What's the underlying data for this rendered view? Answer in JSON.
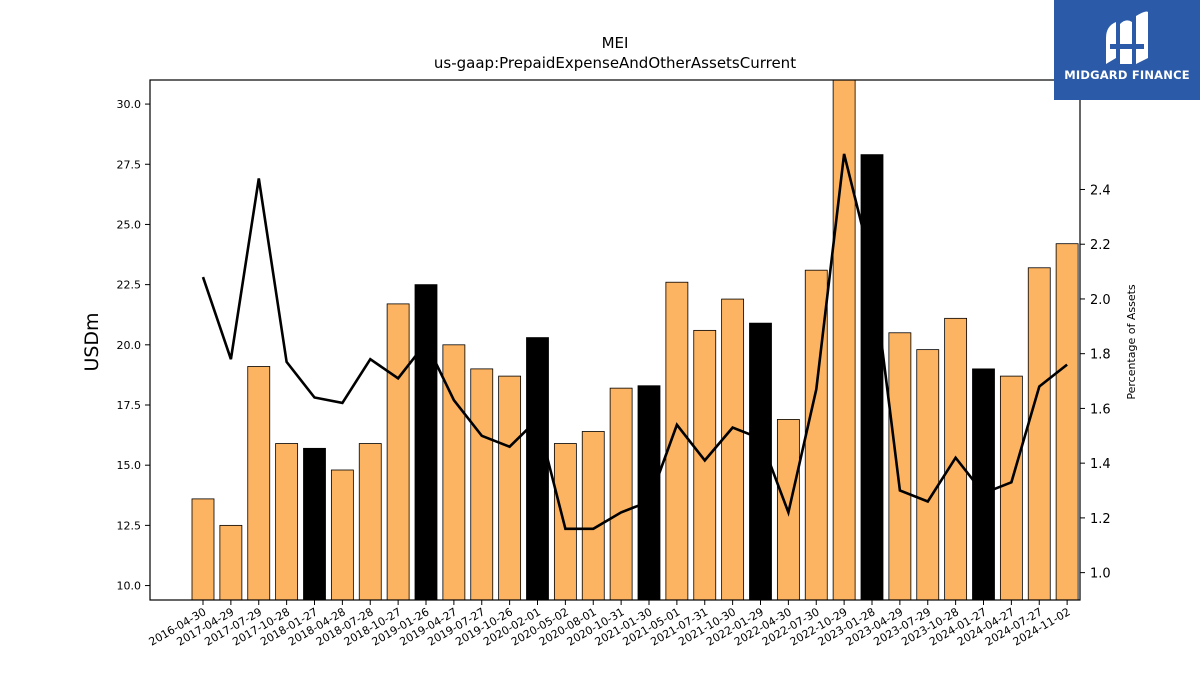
{
  "chart_data": {
    "type": "bar",
    "title": "MEI",
    "subtitle": "us-gaap:PrepaidExpenseAndOtherAssetsCurrent",
    "ylabel": "USDm",
    "y2label": "Percentage of Assets",
    "ylim": [
      9.4,
      31.0
    ],
    "y2lim": [
      0.9,
      2.8
    ],
    "yticks": [
      "10.0",
      "12.5",
      "15.0",
      "17.5",
      "20.0",
      "22.5",
      "25.0",
      "27.5",
      "30.0"
    ],
    "y2ticks": [
      "1.0",
      "1.2",
      "1.4",
      "1.6",
      "1.8",
      "2.0",
      "2.2",
      "2.4"
    ],
    "categories": [
      "2016-04-30",
      "2017-04-29",
      "2017-07-29",
      "2017-10-28",
      "2018-01-27",
      "2018-04-28",
      "2018-07-28",
      "2018-10-27",
      "2019-01-26",
      "2019-04-27",
      "2019-07-27",
      "2019-10-26",
      "2020-02-01",
      "2020-05-02",
      "2020-08-01",
      "2020-10-31",
      "2021-01-30",
      "2021-05-01",
      "2021-07-31",
      "2021-10-30",
      "2022-01-29",
      "2022-04-30",
      "2022-07-30",
      "2022-10-29",
      "2023-01-28",
      "2023-04-29",
      "2023-07-29",
      "2023-10-28",
      "2024-01-27",
      "2024-04-27",
      "2024-07-27",
      "2024-11-02"
    ],
    "values": [
      13.6,
      12.5,
      19.1,
      15.9,
      15.7,
      14.8,
      15.9,
      21.7,
      22.5,
      20.0,
      19.0,
      18.7,
      20.3,
      15.9,
      16.4,
      18.2,
      18.3,
      22.6,
      20.6,
      21.9,
      20.9,
      16.9,
      23.1,
      31.0,
      27.9,
      20.5,
      19.8,
      21.1,
      19.0,
      18.7,
      23.2,
      24.2
    ],
    "highlight": [
      false,
      false,
      false,
      false,
      true,
      false,
      false,
      false,
      true,
      false,
      false,
      false,
      true,
      false,
      false,
      false,
      true,
      false,
      false,
      false,
      true,
      false,
      false,
      false,
      true,
      false,
      false,
      false,
      true,
      false,
      false,
      false
    ],
    "percent_of_assets": [
      2.08,
      1.78,
      2.44,
      1.77,
      1.64,
      1.62,
      1.78,
      1.71,
      1.84,
      1.63,
      1.5,
      1.46,
      1.56,
      1.16,
      1.16,
      1.22,
      1.26,
      1.54,
      1.41,
      1.53,
      1.49,
      1.22,
      1.67,
      2.53,
      2.12,
      1.3,
      1.26,
      1.42,
      1.29,
      1.33,
      1.68,
      1.76
    ],
    "colors": {
      "bar": "#fdb462",
      "highlight_bar": "#000000",
      "line": "#000000"
    }
  },
  "logo": {
    "text": "MIDGARD FINANCE",
    "color": "#2a5aa8"
  }
}
